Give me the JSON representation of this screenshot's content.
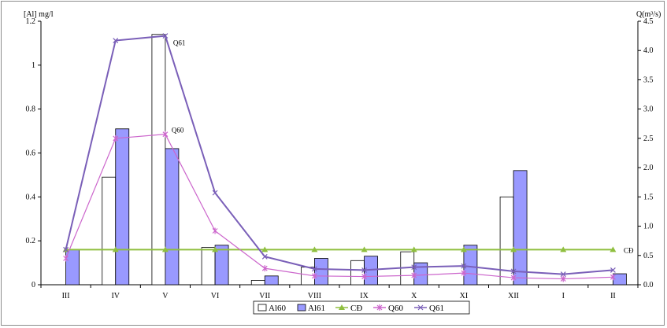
{
  "chart_data": {
    "type": "bar",
    "y_left_label": "[Al] mg/l",
    "y_right_label": "Q(m³/s)",
    "categories": [
      "III",
      "IV",
      "V",
      "VI",
      "VII",
      "VIII",
      "IX",
      "X",
      "XI",
      "XII",
      "I",
      "II"
    ],
    "y_left_ticks": [
      "0",
      "0.2",
      "0.4",
      "0.6",
      "0.8",
      "1",
      "1.2"
    ],
    "y_right_ticks": [
      "0.0",
      "0.5",
      "1.0",
      "1.5",
      "2.0",
      "2.5",
      "3.0",
      "3.5",
      "4.0",
      "4.5"
    ],
    "ylim_left": [
      0,
      1.2
    ],
    "ylim_right": [
      0,
      4.5
    ],
    "bar_series": [
      {
        "name": "Al60",
        "axis": "left",
        "color": "#ffffff",
        "stroke": "#000000",
        "values": [
          0,
          0.49,
          1.14,
          0.17,
          0.02,
          0.08,
          0.11,
          0.15,
          0,
          0.4,
          0,
          0
        ]
      },
      {
        "name": "Al61",
        "axis": "left",
        "color": "#9999ff",
        "stroke": "#000000",
        "values": [
          0.16,
          0.71,
          0.62,
          0.18,
          0.04,
          0.12,
          0.13,
          0.1,
          0.18,
          0.52,
          0,
          0.05
        ]
      }
    ],
    "line_series": [
      {
        "name": "CĐ",
        "axis": "left",
        "color": "#8fbf3f",
        "marker": "triangle",
        "values": [
          0.16,
          0.16,
          0.16,
          0.16,
          0.16,
          0.16,
          0.16,
          0.16,
          0.16,
          0.16,
          0.16,
          0.16
        ]
      },
      {
        "name": "Q60",
        "axis": "right",
        "color": "#cc66cc",
        "marker": "star",
        "values": [
          0.45,
          2.5,
          2.57,
          0.92,
          0.28,
          0.15,
          0.14,
          0.16,
          0.2,
          0.12,
          0.1,
          0.13
        ]
      },
      {
        "name": "Q61",
        "axis": "right",
        "color": "#7a5fb8",
        "marker": "x",
        "values": [
          0.6,
          4.17,
          4.25,
          1.57,
          0.48,
          0.27,
          0.25,
          0.3,
          0.32,
          0.23,
          0.18,
          0.25
        ]
      }
    ],
    "annotations": [
      {
        "text": "Q61",
        "series": "Q61",
        "category": "V"
      },
      {
        "text": "Q60",
        "series": "Q60",
        "category": "V"
      },
      {
        "text": "CĐ",
        "series": "CĐ",
        "category": "II"
      }
    ],
    "legend_position": "bottom",
    "grid": false
  }
}
